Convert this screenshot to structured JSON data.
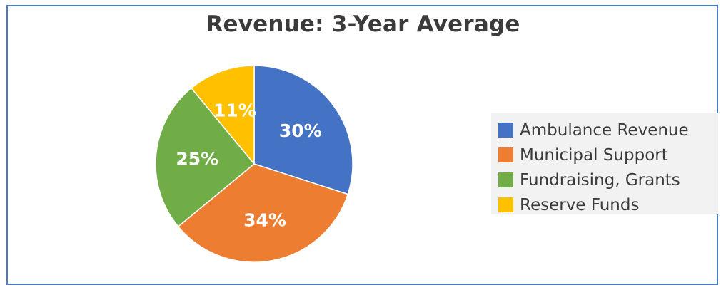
{
  "chart_data": {
    "type": "pie",
    "title": "Revenue: 3-Year Average",
    "categories": [
      "Ambulance Revenue",
      "Municipal Support",
      "Fundraising, Grants",
      "Reserve Funds"
    ],
    "values": [
      30,
      34,
      25,
      11
    ],
    "data_labels": [
      "30%",
      "34%",
      "25%",
      "11%"
    ],
    "colors": [
      "#4472c4",
      "#ed7d31",
      "#70ad47",
      "#ffc000"
    ],
    "legend_position": "right",
    "start_angle": "12 o'clock, clockwise"
  },
  "colors": {
    "border": "#4a7ac8",
    "legend_background": "#f2f2f2",
    "title_text": "#3b3b3b",
    "data_label_text": "#ffffff"
  }
}
